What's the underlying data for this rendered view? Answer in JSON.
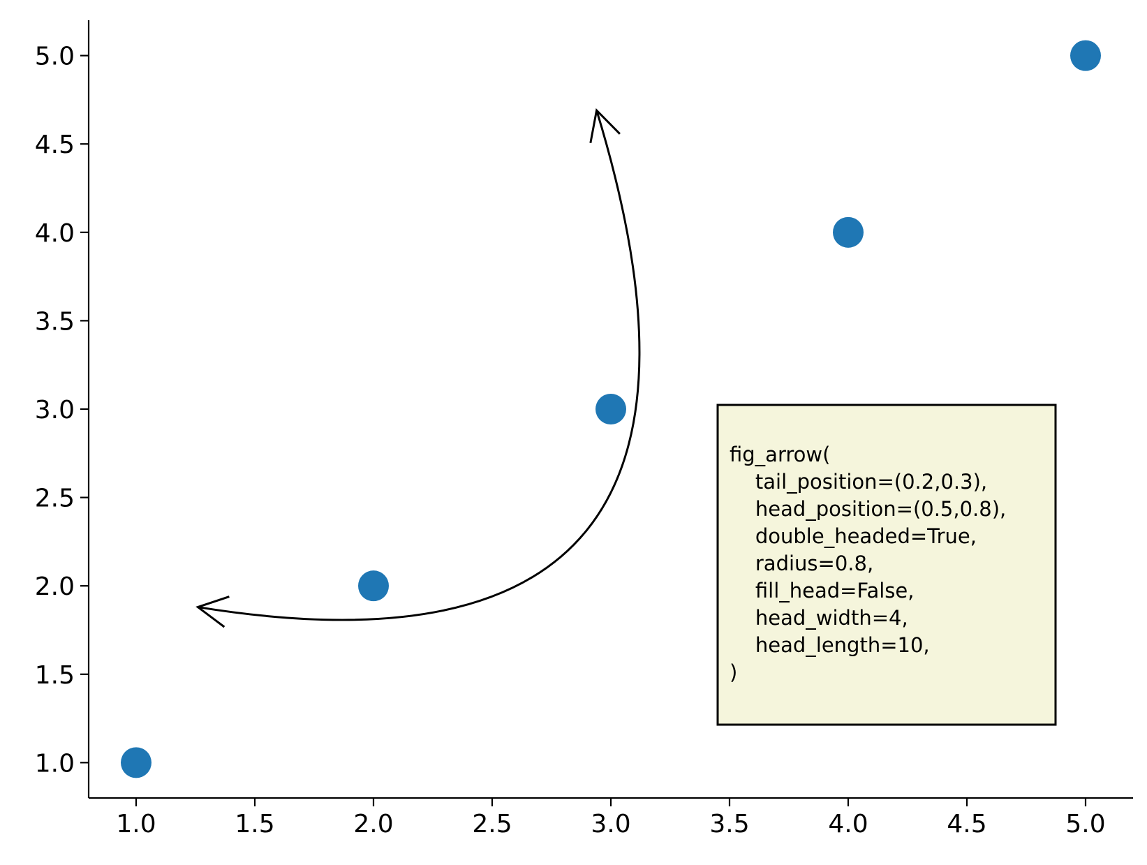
{
  "chart_data": {
    "type": "scatter",
    "title": "",
    "xlabel": "",
    "ylabel": "",
    "xlim": [
      0.8,
      5.2
    ],
    "ylim": [
      0.8,
      5.2
    ],
    "x_ticks": [
      1.0,
      1.5,
      2.0,
      2.5,
      3.0,
      3.5,
      4.0,
      4.5,
      5.0
    ],
    "y_ticks": [
      1.0,
      1.5,
      2.0,
      2.5,
      3.0,
      3.5,
      4.0,
      4.5,
      5.0
    ],
    "x_tick_labels": [
      "1.0",
      "1.5",
      "2.0",
      "2.5",
      "3.0",
      "3.5",
      "4.0",
      "4.5",
      "5.0"
    ],
    "y_tick_labels": [
      "1.0",
      "1.5",
      "2.0",
      "2.5",
      "3.0",
      "3.5",
      "4.0",
      "4.5",
      "5.0"
    ],
    "grid": false,
    "spines": "left-bottom",
    "series": [
      {
        "x": [
          1,
          2,
          3,
          4,
          5
        ],
        "y": [
          1,
          2,
          3,
          4,
          5
        ],
        "color": "#1f77b4"
      }
    ],
    "arrow": {
      "style": "curved double-headed open-head",
      "tail": [
        1.26,
        1.88
      ],
      "head": [
        2.94,
        4.69
      ],
      "control": [
        3.7,
        1.35
      ],
      "color": "#000000"
    },
    "annotation_box": {
      "background": "#f5f5dc",
      "border_color": "#000000",
      "lines": [
        "fig_arrow(",
        "    tail_position=(0.2,0.3),",
        "    head_position=(0.5,0.8),",
        "    double_headed=True,",
        "    radius=0.8,",
        "    fill_head=False,",
        "    head_width=4,",
        "    head_length=10,",
        ")"
      ]
    }
  }
}
